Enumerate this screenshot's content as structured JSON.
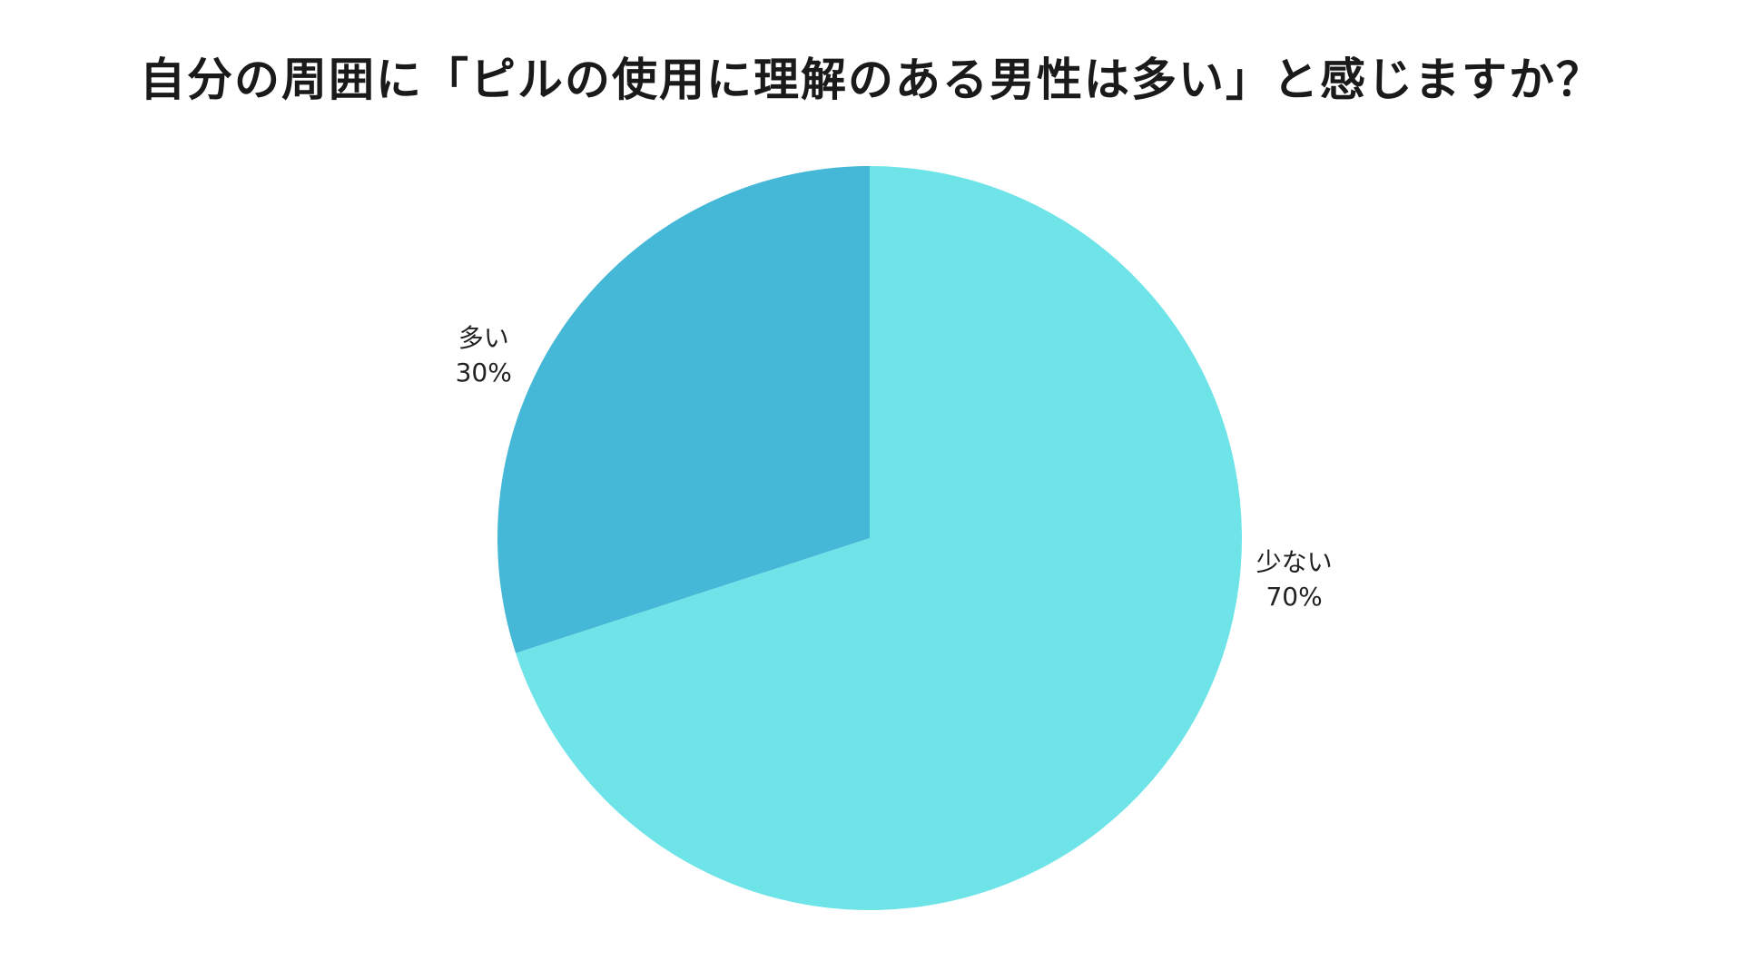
{
  "chart_data": {
    "type": "pie",
    "title": "自分の周囲に「ピルの使用に理解のある男性は多い」と感じますか？",
    "slices": [
      {
        "label": "少ない",
        "value": 70,
        "value_label": "70%",
        "color": "#6ee4e8"
      },
      {
        "label": "多い",
        "value": 30,
        "value_label": "30%",
        "color": "#44b8d6"
      }
    ],
    "start": "12 o'clock",
    "direction": "clockwise",
    "labels": "outside"
  }
}
